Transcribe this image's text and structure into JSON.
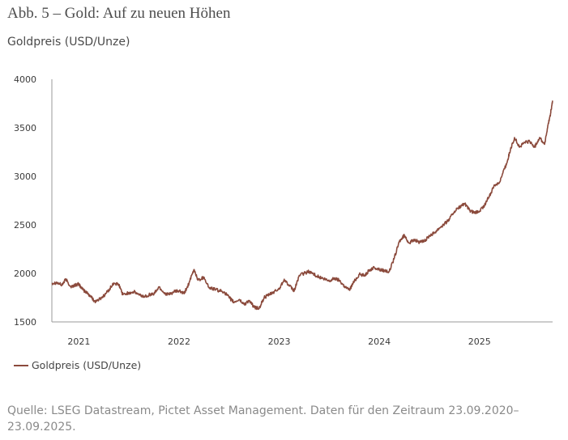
{
  "figure": {
    "title": "Abb. 5 – Gold: Auf zu neuen Höhen",
    "subtitle": "Goldpreis (USD/Unze)",
    "source": "Quelle: LSEG Datastream, Pictet Asset Management. Daten für den Zeitraum 23.09.2020–23.09.2025."
  },
  "colors": {
    "line": "#8B4A3C",
    "axis": "#9a9a9a",
    "text": "#4a4a4a"
  },
  "chart_data": {
    "type": "line",
    "title": "Abb. 5 – Gold: Auf zu neuen Höhen",
    "ylabel": "Goldpreis (USD/Unze)",
    "xlabel": "",
    "ylim": [
      1500,
      4000
    ],
    "xlim": [
      2020.73,
      2025.73
    ],
    "y_ticks": [
      1500,
      2000,
      2500,
      3000,
      3500,
      4000
    ],
    "x_ticks": [
      {
        "label": "2021",
        "value": 2021.0
      },
      {
        "label": "2022",
        "value": 2022.0
      },
      {
        "label": "2023",
        "value": 2023.0
      },
      {
        "label": "2024",
        "value": 2024.0
      },
      {
        "label": "2025",
        "value": 2025.0
      }
    ],
    "grid": false,
    "legend_position": "bottom-left",
    "series": [
      {
        "name": "Goldpreis (USD/Unze)",
        "x": [
          2020.73,
          2020.78,
          2020.83,
          2020.87,
          2020.92,
          2020.96,
          2021.0,
          2021.04,
          2021.08,
          2021.12,
          2021.16,
          2021.2,
          2021.25,
          2021.3,
          2021.35,
          2021.4,
          2021.44,
          2021.5,
          2021.55,
          2021.6,
          2021.65,
          2021.7,
          2021.75,
          2021.8,
          2021.85,
          2021.9,
          2021.95,
          2022.0,
          2022.05,
          2022.1,
          2022.15,
          2022.19,
          2022.25,
          2022.3,
          2022.35,
          2022.4,
          2022.45,
          2022.5,
          2022.55,
          2022.6,
          2022.65,
          2022.7,
          2022.75,
          2022.8,
          2022.85,
          2022.9,
          2022.95,
          2023.0,
          2023.05,
          2023.1,
          2023.15,
          2023.2,
          2023.25,
          2023.3,
          2023.35,
          2023.4,
          2023.45,
          2023.5,
          2023.55,
          2023.6,
          2023.65,
          2023.7,
          2023.75,
          2023.8,
          2023.85,
          2023.9,
          2023.95,
          2024.0,
          2024.05,
          2024.1,
          2024.15,
          2024.2,
          2024.25,
          2024.3,
          2024.35,
          2024.4,
          2024.45,
          2024.5,
          2024.55,
          2024.6,
          2024.65,
          2024.7,
          2024.75,
          2024.8,
          2024.85,
          2024.9,
          2024.95,
          2025.0,
          2025.05,
          2025.1,
          2025.15,
          2025.2,
          2025.25,
          2025.27,
          2025.3,
          2025.35,
          2025.4,
          2025.45,
          2025.5,
          2025.55,
          2025.6,
          2025.65,
          2025.68,
          2025.71,
          2025.73
        ],
        "values": [
          1900,
          1905,
          1880,
          1940,
          1860,
          1880,
          1890,
          1830,
          1800,
          1760,
          1710,
          1730,
          1770,
          1830,
          1900,
          1880,
          1780,
          1800,
          1810,
          1780,
          1760,
          1780,
          1790,
          1860,
          1800,
          1780,
          1810,
          1820,
          1790,
          1900,
          2040,
          1930,
          1960,
          1850,
          1840,
          1820,
          1810,
          1750,
          1700,
          1730,
          1680,
          1720,
          1650,
          1640,
          1750,
          1780,
          1810,
          1840,
          1940,
          1870,
          1820,
          1980,
          2000,
          2020,
          1990,
          1960,
          1940,
          1920,
          1950,
          1930,
          1870,
          1830,
          1920,
          1990,
          1980,
          2030,
          2060,
          2040,
          2030,
          2020,
          2160,
          2330,
          2390,
          2310,
          2350,
          2320,
          2330,
          2390,
          2420,
          2470,
          2510,
          2560,
          2640,
          2680,
          2720,
          2650,
          2620,
          2640,
          2700,
          2800,
          2910,
          2940,
          3080,
          3130,
          3240,
          3400,
          3300,
          3350,
          3360,
          3300,
          3400,
          3330,
          3500,
          3650,
          3780
        ]
      }
    ]
  },
  "legend": {
    "items": [
      {
        "label": "Goldpreis (USD/Unze)"
      }
    ]
  }
}
